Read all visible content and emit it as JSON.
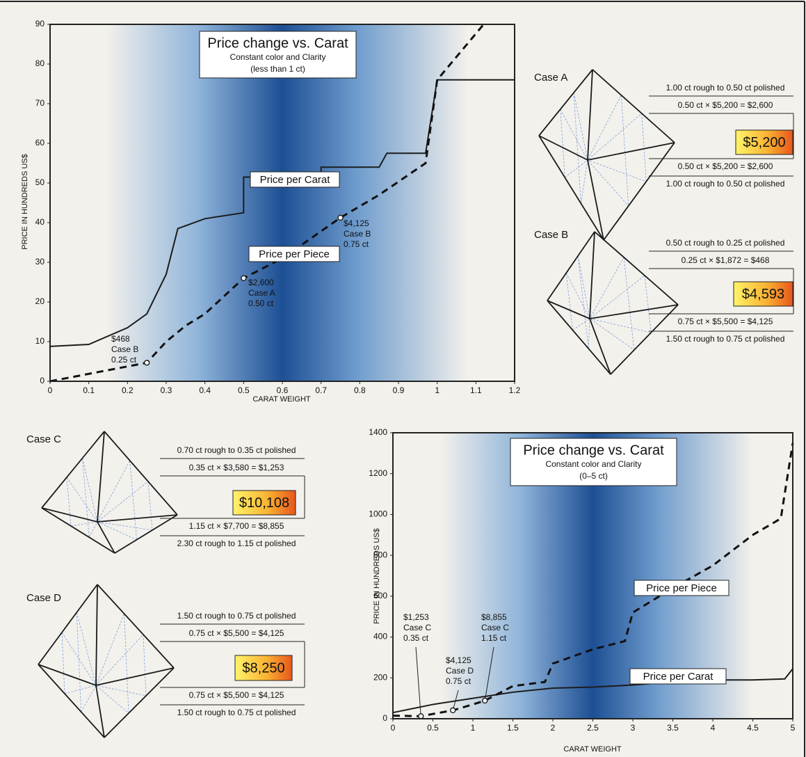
{
  "chart_data": [
    {
      "type": "line",
      "title": "Price change vs. Carat",
      "subtitle": "Constant color and Clarity",
      "note": "(less than 1 ct)",
      "x_label": "CARAT WEIGHT",
      "y_label": "PRICE IN HUNDREDS US$",
      "xlim": [
        0,
        1.2
      ],
      "xticks": [
        0,
        0.1,
        0.2,
        0.3,
        0.4,
        0.5,
        0.6,
        0.7,
        0.8,
        0.9,
        1,
        1.1,
        1.2
      ],
      "ylim": [
        0,
        90
      ],
      "yticks": [
        0,
        10,
        20,
        30,
        40,
        50,
        60,
        70,
        80,
        90
      ],
      "series": [
        {
          "name": "Price per Carat",
          "color": "#1c1c1c",
          "style": "solid",
          "x": [
            0,
            0.1,
            0.2,
            0.25,
            0.3,
            0.33,
            0.4,
            0.5,
            0.5,
            0.7,
            0.7,
            0.85,
            0.87,
            0.97,
            1.0,
            1.2
          ],
          "values": [
            8.8,
            9.3,
            13.5,
            17,
            27,
            38.5,
            41,
            42.5,
            51.5,
            51.5,
            54,
            54,
            57.5,
            57.5,
            76,
            76
          ]
        },
        {
          "name": "Price per Piece",
          "color": "#111111",
          "style": "dashed",
          "x": [
            0,
            0.25,
            0.3,
            0.35,
            0.4,
            0.5,
            0.6,
            0.75,
            0.85,
            0.97,
            1.0,
            1.12
          ],
          "values": [
            0,
            4.68,
            10,
            14,
            17,
            26,
            31,
            41.25,
            47,
            55,
            76,
            90
          ]
        }
      ],
      "annotations": [
        {
          "x": 0.25,
          "y": 4.68,
          "texts": [
            "$468",
            "Case B",
            "0.25 ct"
          ]
        },
        {
          "x": 0.5,
          "y": 26,
          "texts": [
            "$2,600",
            "Case A",
            "0.50 ct"
          ]
        },
        {
          "x": 0.75,
          "y": 41.25,
          "texts": [
            "$4,125",
            "Case B",
            "0.75 ct"
          ]
        }
      ]
    },
    {
      "type": "line",
      "title": "Price change vs. Carat",
      "subtitle": "Constant color and Clarity",
      "note": "(0–5 ct)",
      "x_label": "CARAT WEIGHT",
      "y_label": "PRICE IN HUNDREDS US$",
      "xlim": [
        0,
        5
      ],
      "xticks": [
        0,
        0.5,
        1,
        1.5,
        2,
        2.5,
        3,
        3.5,
        4,
        4.5,
        5
      ],
      "ylim": [
        0,
        1400
      ],
      "yticks": [
        0,
        200,
        400,
        600,
        800,
        1000,
        1200,
        1400
      ],
      "series": [
        {
          "name": "Price per Carat",
          "color": "#1c1c1c",
          "style": "solid",
          "x": [
            0,
            0.5,
            1,
            1.5,
            2,
            2.5,
            3,
            3.5,
            4,
            4.5,
            4.9,
            5
          ],
          "values": [
            30,
            70,
            100,
            130,
            150,
            155,
            165,
            180,
            190,
            190,
            195,
            245
          ]
        },
        {
          "name": "Price per Piece",
          "color": "#111111",
          "style": "dashed",
          "x": [
            0,
            0.35,
            0.75,
            1,
            1.15,
            1.5,
            1.9,
            2,
            2.5,
            2.9,
            3,
            3.5,
            4,
            4.5,
            4.85,
            5
          ],
          "values": [
            15,
            12.53,
            41.25,
            70,
            88.55,
            160,
            180,
            270,
            340,
            380,
            520,
            640,
            750,
            900,
            980,
            1350
          ]
        }
      ],
      "annotations": [
        {
          "x": 0.35,
          "y": 12.53,
          "texts": [
            "$1,253",
            "Case C",
            "0.35 ct"
          ]
        },
        {
          "x": 0.75,
          "y": 41.25,
          "texts": [
            "$4,125",
            "Case D",
            "0.75 ct"
          ]
        },
        {
          "x": 1.15,
          "y": 88.55,
          "texts": [
            "$8,855",
            "Case C",
            "1.15 ct"
          ]
        }
      ]
    }
  ],
  "cases": [
    {
      "label": "Case A",
      "price": "$5,200",
      "lines": [
        "1.00 ct rough to 0.50 ct polished",
        "0.50 ct × $5,200 = $2,600",
        "0.50 ct × $5,200 = $2,600",
        "1.00 ct rough to 0.50 ct polished"
      ]
    },
    {
      "label": "Case B",
      "price": "$4,593",
      "lines": [
        "0.50 ct rough to 0.25 ct polished",
        "0.25 ct × $1,872 = $468",
        "0.75 ct × $5,500 = $4,125",
        "1.50 ct rough to 0.75 ct polished"
      ]
    },
    {
      "label": "Case C",
      "price": "$10,108",
      "lines": [
        "0.70 ct rough to 0.35 ct polished",
        "0.35 ct × $3,580 = $1,253",
        "1.15 ct × $7,700 = $8,855",
        "2.30 ct rough to 1.15 ct polished"
      ]
    },
    {
      "label": "Case D",
      "price": "$8,250",
      "lines": [
        "1.50 ct rough to 0.75 ct polished",
        "0.75 ct × $5,500 = $4,125",
        "0.75 ct × $5,500 = $4,125",
        "1.50 ct rough to 0.75 ct polished"
      ]
    }
  ]
}
